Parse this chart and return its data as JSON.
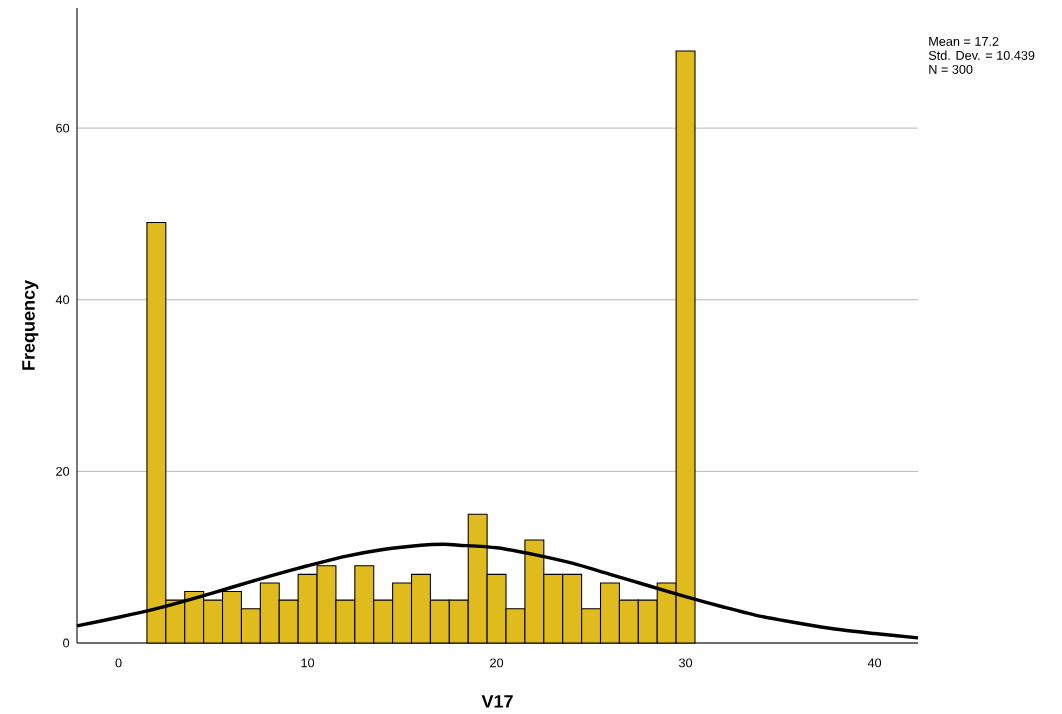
{
  "chart_data": {
    "type": "histogram",
    "xlabel": "V17",
    "ylabel": "Frequency",
    "bins": [
      1.5,
      2.5,
      3.5,
      4.5,
      5.5,
      6.5,
      7.5,
      8.5,
      9.5,
      10.5,
      11.5,
      12.5,
      13.5,
      14.5,
      15.5,
      16.5,
      17.5,
      18.5,
      19.5,
      20.5,
      21.5,
      22.5,
      23.5,
      24.5,
      25.5,
      26.5,
      27.5,
      28.5,
      29.5,
      30.5
    ],
    "values": [
      49,
      5,
      6,
      5,
      6,
      4,
      7,
      5,
      8,
      9,
      5,
      9,
      5,
      7,
      8,
      5,
      5,
      15,
      8,
      4,
      12,
      8,
      8,
      4,
      7,
      5,
      5,
      7,
      69
    ],
    "color": "#e0bb1e",
    "xlim": [
      -2.2,
      42.3
    ],
    "ylim": [
      0,
      74
    ],
    "xticks": [
      0,
      10,
      20,
      30,
      40
    ],
    "yticks": [
      0,
      20,
      40,
      60
    ],
    "grid": "y",
    "annotations": [
      "Mean = 17.2",
      "Std. Dev. = 10.439",
      "N = 300"
    ],
    "series": [
      {
        "type": "line",
        "color": "#000000",
        "marker": "none",
        "x": [
          -2.2,
          0,
          2,
          4,
          6,
          8,
          10,
          12,
          14,
          16,
          17.2,
          18,
          20,
          22,
          24,
          26,
          28,
          30,
          32,
          34,
          36,
          38,
          40,
          42.3
        ],
        "values": [
          2.0,
          3.0,
          4.0,
          5.2,
          6.5,
          7.8,
          9.0,
          10.1,
          10.9,
          11.4,
          11.5,
          11.4,
          11.1,
          10.3,
          9.3,
          8.0,
          6.7,
          5.4,
          4.2,
          3.1,
          2.3,
          1.6,
          1.1,
          0.6
        ]
      }
    ]
  }
}
